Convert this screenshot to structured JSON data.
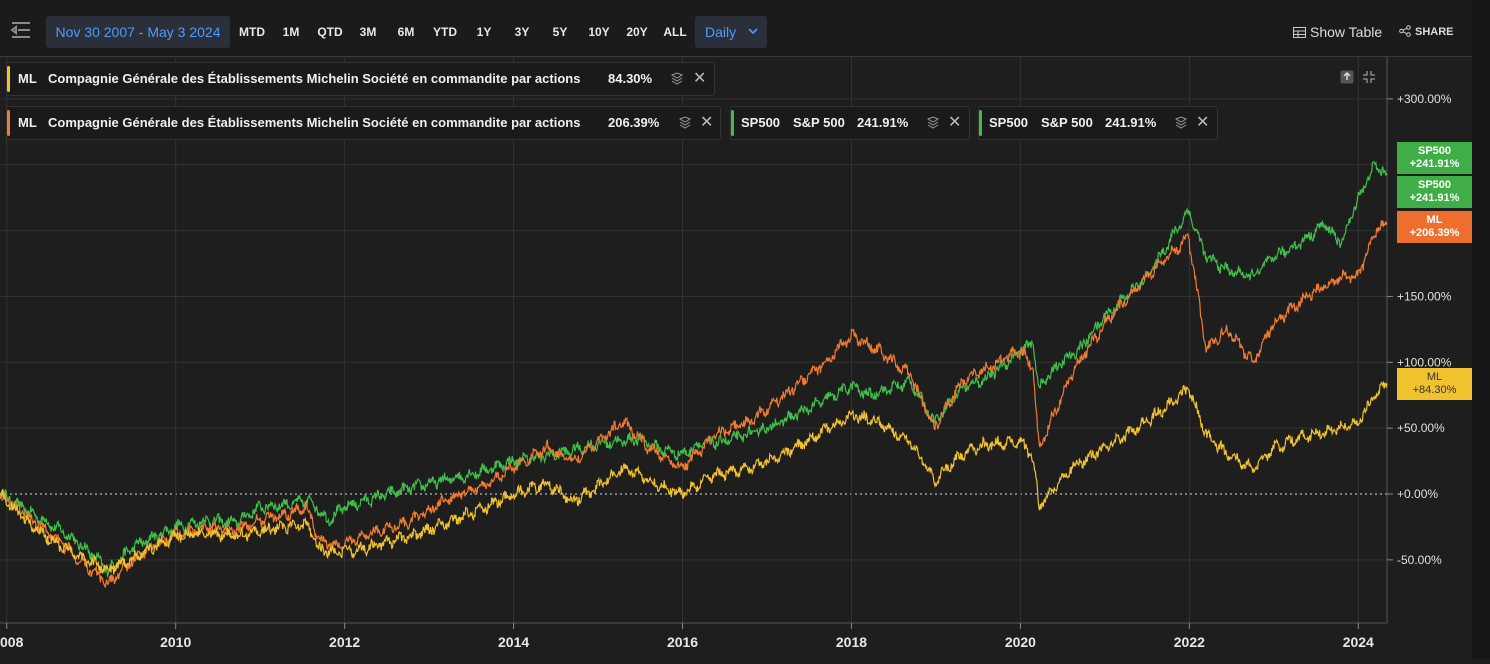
{
  "toolbar": {
    "date_range": "Nov 30 2007 - May 3 2024",
    "periods": [
      "MTD",
      "1M",
      "QTD",
      "3M",
      "6M",
      "YTD",
      "1Y",
      "3Y",
      "5Y",
      "10Y",
      "20Y",
      "ALL"
    ],
    "interval": "Daily",
    "show_table": "Show Table",
    "share": "SHARE"
  },
  "legends": [
    {
      "ticker": "ML",
      "name": "Compagnie Générale des Établissements Michelin Société en commandite par actions",
      "value": "84.30%",
      "color": "#f2c12e"
    },
    {
      "ticker": "ML",
      "name": "Compagnie Générale des Établissements Michelin Société en commandite par actions",
      "value": "206.39%",
      "color": "#f07a30"
    },
    {
      "ticker": "SP500",
      "name": "S&P 500",
      "value": "241.91%",
      "color": "#3fbf4a"
    },
    {
      "ticker": "SP500",
      "name": "S&P 500",
      "value": "241.91%",
      "color": "#3fbf4a"
    }
  ],
  "price_tags": [
    {
      "line1": "SP500",
      "line2": "+241.91%",
      "color": "#3fae46"
    },
    {
      "line1": "SP500",
      "line2": "+241.91%",
      "color": "#3fae46"
    },
    {
      "line1": "ML",
      "line2": "+206.39%",
      "color": "#ee6f2d"
    },
    {
      "line1": "ML",
      "line2": "+84.30%",
      "color": "#f2c12e"
    }
  ],
  "chart_data": {
    "type": "line",
    "xlabel": "",
    "ylabel": "",
    "x_ticks": [
      "008",
      "2010",
      "2012",
      "2014",
      "2016",
      "2018",
      "2020",
      "2022",
      "2024"
    ],
    "y_ticks": [
      "+300.00%",
      "+150.00%",
      "+100.00%",
      "+50.00%",
      "+0.00%",
      "-50.00%"
    ],
    "ylim": [
      -90,
      320
    ],
    "xlim": [
      2007.92,
      2024.34
    ],
    "grid": true,
    "series": [
      {
        "name": "S&P 500",
        "color": "#3fbf4a",
        "x": [
          2007.92,
          2008.3,
          2008.7,
          2009.0,
          2009.2,
          2009.5,
          2010.0,
          2010.4,
          2010.7,
          2011.0,
          2011.3,
          2011.6,
          2011.8,
          2012.0,
          2012.5,
          2013.0,
          2013.5,
          2014.0,
          2014.5,
          2015.0,
          2015.5,
          2015.7,
          2016.0,
          2016.2,
          2016.5,
          2017.0,
          2017.5,
          2018.0,
          2018.2,
          2018.7,
          2018.98,
          2019.3,
          2019.6,
          2020.0,
          2020.15,
          2020.22,
          2020.4,
          2020.7,
          2021.0,
          2021.5,
          2021.99,
          2022.2,
          2022.45,
          2022.75,
          2023.0,
          2023.3,
          2023.6,
          2023.8,
          2024.0,
          2024.2,
          2024.34
        ],
        "y": [
          0,
          -15,
          -30,
          -45,
          -58,
          -40,
          -25,
          -20,
          -22,
          -10,
          -8,
          -5,
          -20,
          -10,
          0,
          8,
          15,
          25,
          30,
          38,
          42,
          35,
          30,
          38,
          40,
          50,
          65,
          82,
          75,
          85,
          55,
          80,
          88,
          108,
          115,
          80,
          95,
          110,
          135,
          165,
          215,
          180,
          170,
          165,
          180,
          190,
          205,
          190,
          225,
          250,
          242
        ]
      },
      {
        "name": "Michelin",
        "color": "#f07a30",
        "x": [
          2007.92,
          2008.3,
          2008.7,
          2009.0,
          2009.2,
          2009.6,
          2010.0,
          2010.4,
          2010.7,
          2011.0,
          2011.3,
          2011.55,
          2011.7,
          2011.9,
          2012.3,
          2012.8,
          2013.2,
          2013.6,
          2014.0,
          2014.4,
          2014.7,
          2015.0,
          2015.3,
          2015.6,
          2016.0,
          2016.4,
          2016.8,
          2017.2,
          2017.6,
          2018.0,
          2018.3,
          2018.7,
          2018.98,
          2019.3,
          2019.6,
          2020.0,
          2020.15,
          2020.22,
          2020.6,
          2021.0,
          2021.5,
          2021.99,
          2022.2,
          2022.45,
          2022.75,
          2023.0,
          2023.4,
          2023.8,
          2024.0,
          2024.2,
          2024.34
        ],
        "y": [
          0,
          -20,
          -40,
          -58,
          -68,
          -45,
          -30,
          -25,
          -28,
          -20,
          -15,
          -10,
          -35,
          -40,
          -30,
          -20,
          -5,
          5,
          20,
          35,
          25,
          40,
          55,
          35,
          20,
          45,
          55,
          75,
          95,
          120,
          110,
          90,
          50,
          85,
          95,
          110,
          95,
          35,
          90,
          130,
          165,
          195,
          110,
          125,
          100,
          130,
          150,
          165,
          165,
          200,
          206
        ]
      },
      {
        "name": "Michelin",
        "color": "#f2c12e",
        "x": [
          2007.92,
          2008.3,
          2008.7,
          2009.0,
          2009.2,
          2009.6,
          2010.0,
          2010.4,
          2010.7,
          2011.0,
          2011.3,
          2011.55,
          2011.7,
          2011.9,
          2012.3,
          2012.8,
          2013.2,
          2013.6,
          2014.0,
          2014.4,
          2014.7,
          2015.0,
          2015.3,
          2015.6,
          2016.0,
          2016.4,
          2016.8,
          2017.2,
          2017.6,
          2018.0,
          2018.3,
          2018.7,
          2018.98,
          2019.3,
          2019.6,
          2020.0,
          2020.15,
          2020.22,
          2020.6,
          2021.0,
          2021.5,
          2021.99,
          2022.2,
          2022.45,
          2022.75,
          2023.0,
          2023.4,
          2023.8,
          2024.0,
          2024.2,
          2024.34
        ],
        "y": [
          0,
          -25,
          -42,
          -52,
          -58,
          -45,
          -32,
          -30,
          -32,
          -28,
          -25,
          -22,
          -42,
          -45,
          -40,
          -32,
          -22,
          -12,
          0,
          8,
          -5,
          5,
          20,
          10,
          0,
          15,
          20,
          30,
          45,
          60,
          55,
          40,
          10,
          30,
          38,
          40,
          28,
          -10,
          20,
          35,
          55,
          80,
          45,
          30,
          20,
          35,
          45,
          50,
          55,
          75,
          84
        ]
      }
    ]
  }
}
